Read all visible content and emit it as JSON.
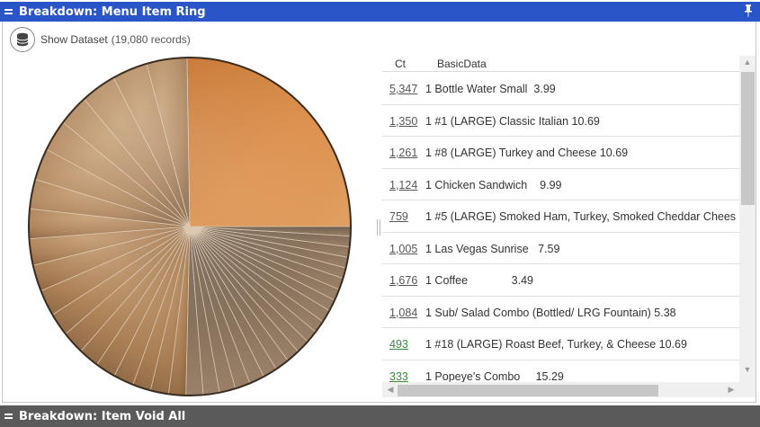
{
  "panel_top": {
    "title": "Breakdown: Menu Item Ring"
  },
  "panel_bottom": {
    "title": "Breakdown: Item Void All"
  },
  "dataset": {
    "label": "Show Dataset",
    "count": "(19,080 records)"
  },
  "grid": {
    "columns": [
      "Ct",
      "BasicData"
    ],
    "rows": [
      {
        "ct": "5,347",
        "desc": "1 Bottle Water Small  3.99",
        "ct_color": "gray"
      },
      {
        "ct": "1,350",
        "desc": "1 #1 (LARGE) Classic Italian 10.69",
        "ct_color": "gray"
      },
      {
        "ct": "1,261",
        "desc": "1 #8 (LARGE) Turkey and Cheese 10.69",
        "ct_color": "gray"
      },
      {
        "ct": "1,124",
        "desc": "1 Chicken Sandwich    9.99",
        "ct_color": "gray"
      },
      {
        "ct": "759",
        "desc": "1 #5 (LARGE) Smoked Ham, Turkey, Smoked Cheddar Chees",
        "ct_color": "gray"
      },
      {
        "ct": "1,005",
        "desc": "1 Las Vegas Sunrise   7.59",
        "ct_color": "gray"
      },
      {
        "ct": "1,676",
        "desc": "1 Coffee              3.49",
        "ct_color": "gray"
      },
      {
        "ct": "1,084",
        "desc": "1 Sub/ Salad Combo (Bottled/ LRG Fountain) 5.38",
        "ct_color": "gray"
      },
      {
        "ct": "493",
        "desc": "1 #18 (LARGE) Roast Beef, Turkey, & Cheese 10.69",
        "ct_color": "green"
      },
      {
        "ct": "333",
        "desc": "1 Popeye's Combo     15.29",
        "ct_color": "green"
      }
    ]
  },
  "pie": {
    "highlight_color": "#d8843c",
    "base_color": "#b0865a",
    "dark_color": "#6e5a48",
    "slice_fractions": [
      0.25,
      0.04,
      0.035,
      0.035,
      0.03,
      0.03,
      0.03,
      0.028,
      0.028,
      0.025,
      0.025,
      0.025,
      0.022,
      0.022,
      0.02,
      0.02,
      0.02,
      0.018,
      0.018,
      0.017,
      0.017,
      0.016,
      0.016,
      0.015,
      0.015,
      0.014,
      0.014,
      0.013,
      0.013,
      0.012,
      0.012,
      0.012,
      0.011,
      0.011,
      0.011,
      0.01,
      0.01,
      0.01,
      0.01,
      0.009
    ]
  }
}
